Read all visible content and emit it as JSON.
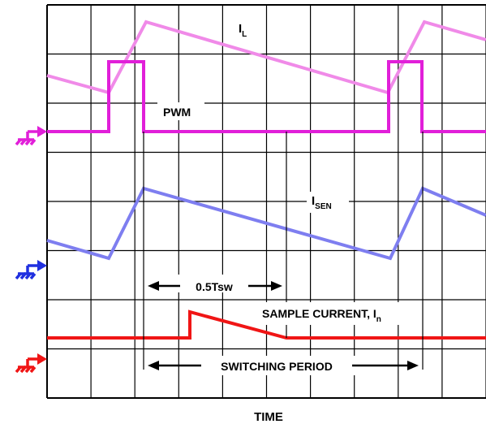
{
  "chart_data": {
    "type": "line",
    "xlabel": "TIME",
    "colors": {
      "inductor_current": "#f08ae8",
      "pwm": "#e11fd9",
      "sense_current": "#7e7ef0",
      "sample_current": "#f01515",
      "arrows": "#000000",
      "grid": "#000000"
    },
    "grid": {
      "divisions_x": 10,
      "divisions_y": 8
    },
    "traces": {
      "inductor_current": {
        "label_main": "I",
        "label_sub": "L"
      },
      "pwm": {
        "label": "PWM"
      },
      "sense_current": {
        "label_main": "I",
        "label_sub": "SEN"
      },
      "sample_current": {
        "label_main": "SAMPLE CURRENT, I",
        "label_sub": "n"
      }
    },
    "annotations": {
      "half_period": "0.5Tsw",
      "period": "SWITCHING PERIOD"
    },
    "ground_icons": [
      "pwm-ground",
      "sense-ground",
      "sample-ground"
    ],
    "ground_icon_colors": [
      "#e11fd9",
      "#2030e0",
      "#f01515"
    ]
  }
}
